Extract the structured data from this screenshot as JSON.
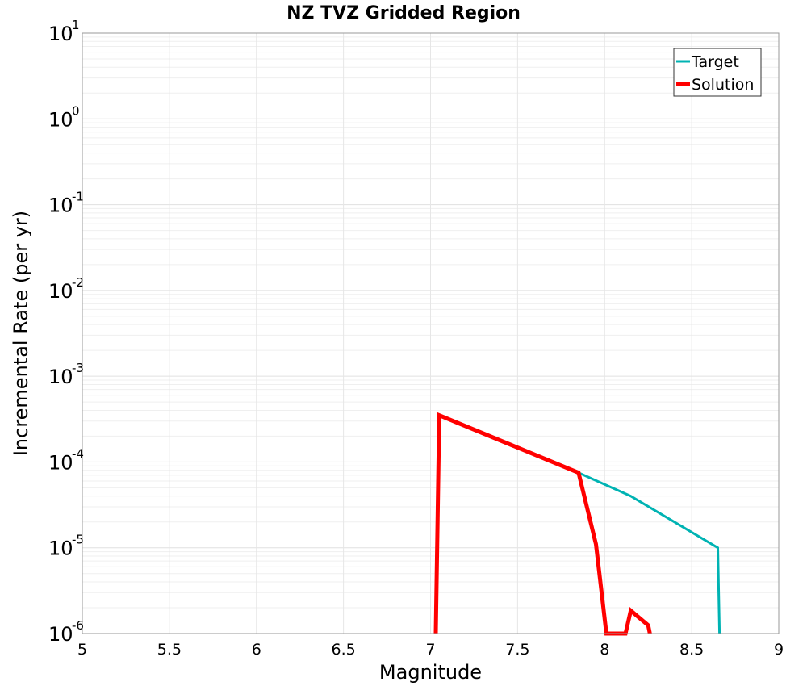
{
  "chart_data": {
    "type": "line",
    "title": "NZ TVZ Gridded Region",
    "xlabel": "Magnitude",
    "ylabel": "Incremental Rate (per yr)",
    "xlim": [
      5,
      9
    ],
    "ylim": [
      1e-06,
      10
    ],
    "yscale": "log",
    "grid": true,
    "legend_position": "top-right",
    "x_ticks": [
      "5",
      "5.5",
      "6",
      "6.5",
      "7",
      "7.5",
      "8",
      "8.5",
      "9"
    ],
    "y_ticks": [
      {
        "base": "10",
        "exp": "1"
      },
      {
        "base": "10",
        "exp": "0"
      },
      {
        "base": "10",
        "exp": "-1"
      },
      {
        "base": "10",
        "exp": "-2"
      },
      {
        "base": "10",
        "exp": "-3"
      },
      {
        "base": "10",
        "exp": "-4"
      },
      {
        "base": "10",
        "exp": "-5"
      },
      {
        "base": "10",
        "exp": "-6"
      }
    ],
    "series": [
      {
        "name": "Target",
        "color": "#00b3b3",
        "x": [
          7.85,
          8.15,
          8.65,
          8.66
        ],
        "y": [
          7.5e-05,
          4e-05,
          1e-05,
          1e-06
        ]
      },
      {
        "name": "Solution",
        "color": "#ff0000",
        "x": [
          7.03,
          7.05,
          7.85,
          7.95,
          8.01,
          8.12,
          8.15,
          8.25,
          8.26
        ],
        "y": [
          1e-06,
          0.00035,
          7.5e-05,
          1.1e-05,
          1e-06,
          1e-06,
          1.85e-06,
          1.25e-06,
          1e-06
        ]
      }
    ]
  }
}
